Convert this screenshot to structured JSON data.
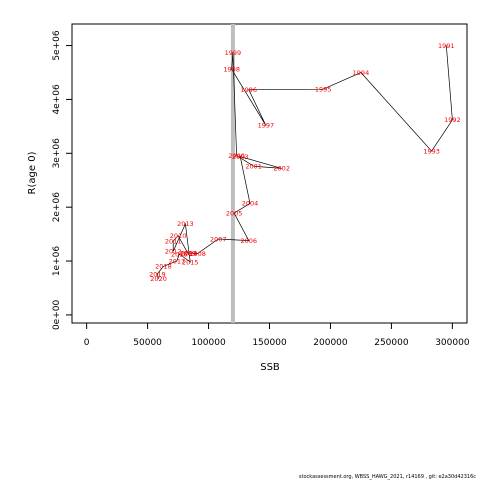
{
  "chart_data": {
    "type": "line",
    "title": "",
    "xlabel": "SSB",
    "ylabel": "R(age 0)",
    "xlim": [
      -12000,
      312000
    ],
    "ylim": [
      -150000,
      5400000
    ],
    "xticks": [
      0,
      50000,
      100000,
      150000,
      200000,
      250000,
      300000
    ],
    "xtick_labels": [
      "0",
      "50000",
      "100000",
      "150000",
      "200000",
      "250000",
      "300000"
    ],
    "yticks": [
      0,
      1000000,
      2000000,
      3000000,
      4000000,
      5000000
    ],
    "ytick_labels": [
      "0e+00",
      "1e+06",
      "2e+06",
      "3e+06",
      "4e+06",
      "5e+06"
    ],
    "vline": {
      "x": 120000,
      "color": "#bebebe"
    },
    "line_color": "#000000",
    "label_color": "#ff0000",
    "series": [
      {
        "points": [
          {
            "year": "1991",
            "x": 295000,
            "y": 5000000
          },
          {
            "year": "1992",
            "x": 300000,
            "y": 3620000
          },
          {
            "year": "1993",
            "x": 283000,
            "y": 3040000
          },
          {
            "year": "1994",
            "x": 225000,
            "y": 4500000
          },
          {
            "year": "1995",
            "x": 194000,
            "y": 4190000
          },
          {
            "year": "1996",
            "x": 133000,
            "y": 4180000
          },
          {
            "year": "1997",
            "x": 147000,
            "y": 3520000
          },
          {
            "year": "1998",
            "x": 119000,
            "y": 4560000
          },
          {
            "year": "1999",
            "x": 120000,
            "y": 4870000
          },
          {
            "year": "2000",
            "x": 123000,
            "y": 2960000
          },
          {
            "year": "2001",
            "x": 137000,
            "y": 2760000
          },
          {
            "year": "2002",
            "x": 160000,
            "y": 2720000
          },
          {
            "year": "2003",
            "x": 126000,
            "y": 2940000
          },
          {
            "year": "2004",
            "x": 134000,
            "y": 2070000
          },
          {
            "year": "2005",
            "x": 121000,
            "y": 1890000
          },
          {
            "year": "2006",
            "x": 133000,
            "y": 1380000
          },
          {
            "year": "2007",
            "x": 108000,
            "y": 1410000
          },
          {
            "year": "2008",
            "x": 91000,
            "y": 1140000
          },
          {
            "year": "2009",
            "x": 83000,
            "y": 1150000
          },
          {
            "year": "2010",
            "x": 75000,
            "y": 1470000
          },
          {
            "year": "2011",
            "x": 71000,
            "y": 1370000
          },
          {
            "year": "2012",
            "x": 71000,
            "y": 1180000
          },
          {
            "year": "2013",
            "x": 81000,
            "y": 1690000
          },
          {
            "year": "2014",
            "x": 84000,
            "y": 1150000
          },
          {
            "year": "2015",
            "x": 85000,
            "y": 980000
          },
          {
            "year": "2016",
            "x": 76000,
            "y": 1130000
          },
          {
            "year": "2017",
            "x": 74000,
            "y": 1000000
          },
          {
            "year": "2018",
            "x": 63000,
            "y": 900000
          },
          {
            "year": "2019",
            "x": 58000,
            "y": 760000
          },
          {
            "year": "2020",
            "x": 59000,
            "y": 670000
          }
        ]
      }
    ]
  },
  "footer": "stockassessment.org,  WBSS_HAWG_2021,  r14169 ,  git:  e2a30d42316c"
}
